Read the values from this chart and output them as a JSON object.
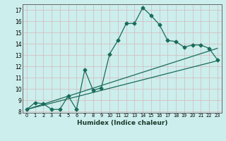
{
  "xlabel": "Humidex (Indice chaleur)",
  "bg_color": "#cceeed",
  "grid_color": "#d4b8b8",
  "line_color": "#1a6b5a",
  "xlim": [
    -0.5,
    23.5
  ],
  "ylim": [
    7.9,
    17.5
  ],
  "xticks": [
    0,
    1,
    2,
    3,
    4,
    5,
    6,
    7,
    8,
    9,
    10,
    11,
    12,
    13,
    14,
    15,
    16,
    17,
    18,
    19,
    20,
    21,
    22,
    23
  ],
  "yticks": [
    8,
    9,
    10,
    11,
    12,
    13,
    14,
    15,
    16,
    17
  ],
  "curve1_x": [
    0,
    1,
    2,
    3,
    4,
    5,
    6,
    7,
    8,
    9,
    10,
    11,
    12,
    13,
    14,
    15,
    16,
    17,
    18,
    19,
    20,
    21,
    22,
    23
  ],
  "curve1_y": [
    8.2,
    8.8,
    8.7,
    8.2,
    8.2,
    9.4,
    8.2,
    11.7,
    9.9,
    10.1,
    13.1,
    14.3,
    15.8,
    15.8,
    17.2,
    16.5,
    15.7,
    14.3,
    14.2,
    13.7,
    13.9,
    13.9,
    13.6,
    12.6
  ],
  "curve2_x": [
    0,
    23
  ],
  "curve2_y": [
    8.2,
    12.5
  ],
  "curve3_x": [
    0,
    23
  ],
  "curve3_y": [
    8.2,
    13.6
  ],
  "marker": "D",
  "markersize": 2.5,
  "linewidth": 0.9
}
